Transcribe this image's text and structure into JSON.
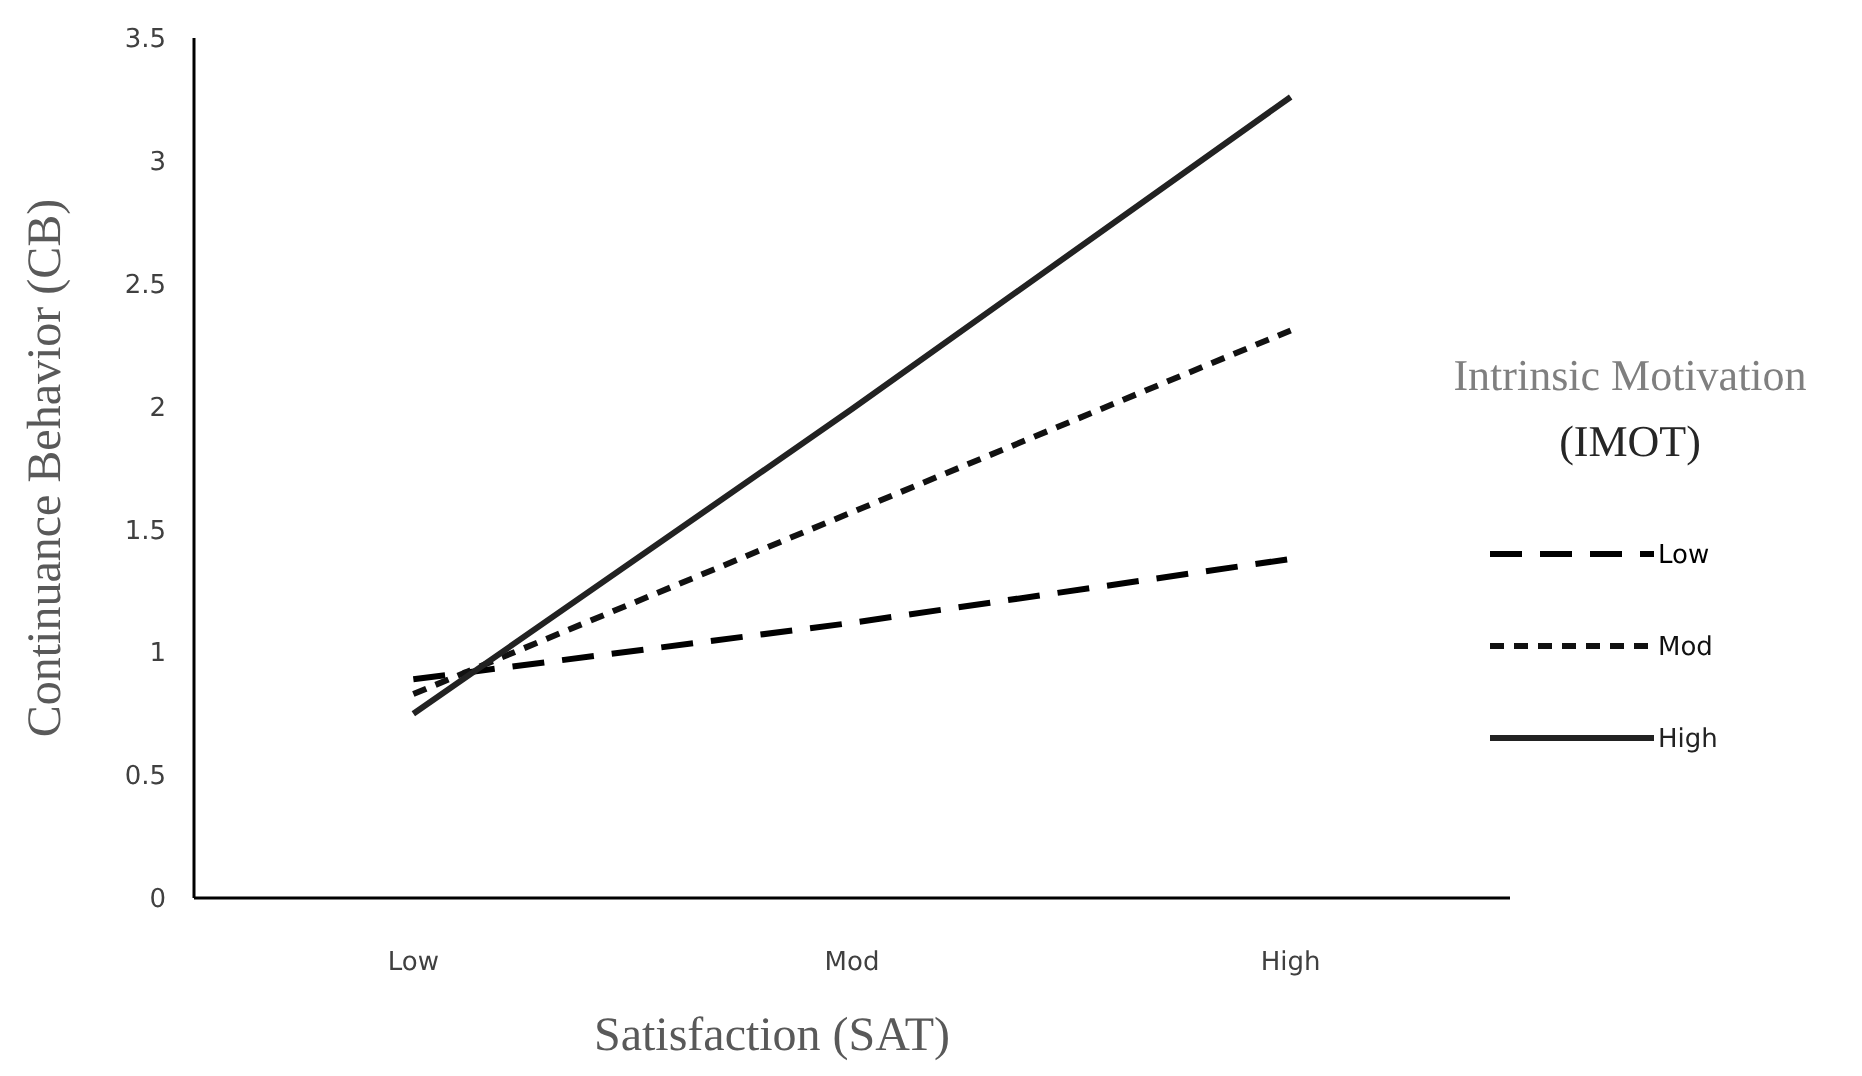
{
  "chart_data": {
    "type": "line",
    "xlabel": "Satisfaction (SAT)",
    "ylabel": "Continuance Behavior (CB)",
    "legend_title": "Intrinsic Motivation (IMOT)",
    "categories": [
      "Low",
      "Mod",
      "High"
    ],
    "series": [
      {
        "name": "Low",
        "color": "#000000",
        "line_style": "dashed",
        "values": [
          0.89,
          1.12,
          1.38
        ]
      },
      {
        "name": "Mod",
        "color": "#111111",
        "line_style": "dotted",
        "values": [
          0.83,
          1.57,
          2.31
        ]
      },
      {
        "name": "High",
        "color": "#222222",
        "line_style": "solid",
        "values": [
          0.75,
          1.99,
          3.26
        ]
      }
    ],
    "ylim": [
      0,
      3.5
    ],
    "yticks": [
      0,
      0.5,
      1,
      1.5,
      2,
      2.5,
      3,
      3.5
    ],
    "grid": false,
    "legend": "right",
    "marker": "none"
  }
}
